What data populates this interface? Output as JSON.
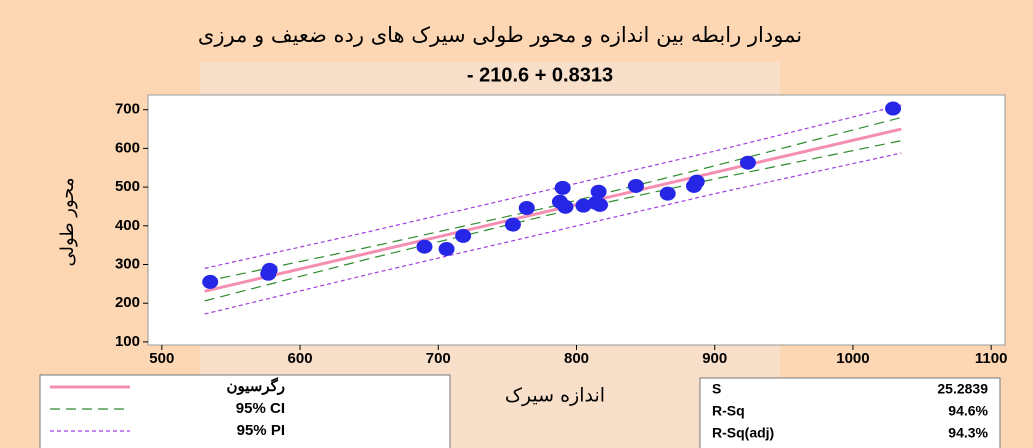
{
  "chart_data": {
    "type": "scatter",
    "title": "نمودار رابطه بین اندازه و محور طولی سیرک های رده ضعیف و مرزی",
    "subtitle": "- 210.6 + 0.8313",
    "x_label": "اندازه سیرک",
    "y_label": "محور طولی",
    "x": [
      535,
      577,
      578,
      690,
      706,
      718,
      754,
      764,
      788,
      790,
      792,
      805,
      814,
      816,
      817,
      843,
      866,
      885,
      887,
      924,
      1029
    ],
    "values": [
      255,
      276,
      286,
      346,
      340,
      374,
      403,
      446,
      462,
      498,
      449,
      452,
      459,
      488,
      454,
      503,
      483,
      503,
      514,
      563,
      703
    ],
    "color": "#2626e6",
    "lines": [
      {
        "name": "رگرسیون",
        "color": "#f48fb1",
        "style": "solid",
        "x": [
          531,
          650,
          780,
          900,
          1035
        ],
        "values": [
          231,
          330,
          438,
          538,
          650
        ]
      },
      {
        "name": "95% CI",
        "color": "#2e8b2e",
        "style": "dashed",
        "x": [
          531,
          650,
          780,
          900,
          1035
        ],
        "values": [
          256,
          345,
          448,
          555,
          680
        ]
      },
      {
        "name": "95% CI",
        "color": "#2e8b2e",
        "style": "dashed",
        "x": [
          531,
          650,
          780,
          900,
          1035
        ],
        "values": [
          206,
          315,
          428,
          521,
          620
        ]
      },
      {
        "name": "95% PI",
        "color": "#a040e0",
        "style": "dotted",
        "x": [
          531,
          650,
          780,
          900,
          1035
        ],
        "values": [
          290,
          385,
          493,
          593,
          712
        ]
      },
      {
        "name": "95% PI",
        "color": "#a040e0",
        "style": "dotted",
        "x": [
          531,
          650,
          780,
          900,
          1035
        ],
        "values": [
          172,
          275,
          383,
          483,
          588
        ]
      }
    ],
    "legend_entries": [
      0,
      1,
      3
    ],
    "xlim": [
      490,
      1110
    ],
    "ylim": [
      92,
      738
    ],
    "xticks": [
      500,
      600,
      700,
      800,
      900,
      1000,
      1100
    ],
    "yticks": [
      100,
      200,
      300,
      400,
      500,
      600,
      700
    ],
    "stats": [
      [
        "S",
        "25.2839"
      ],
      [
        "R-Sq",
        "94.6%"
      ],
      [
        "R-Sq(adj)",
        "94.3%"
      ]
    ]
  }
}
